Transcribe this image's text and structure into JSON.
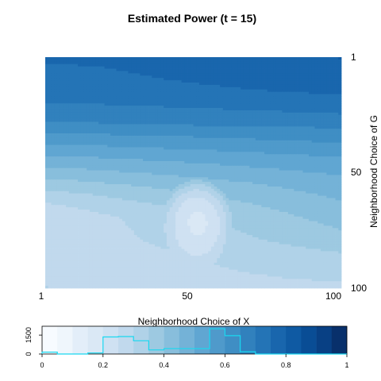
{
  "chart_data": [
    {
      "type": "heatmap",
      "title": "Estimated Power (t = 15)",
      "xlabel": "Neighborhood Choice of X",
      "ylabel": "Neighborhood Choice of G",
      "x_ticks": [
        "1",
        "50",
        "100"
      ],
      "y_ticks": [
        "1",
        "50",
        "100"
      ],
      "x_range": [
        1,
        100
      ],
      "y_range": [
        1,
        100
      ],
      "y_axis_side": "right",
      "y_direction": "top-to-bottom",
      "color_scale": "Blues",
      "value_range": [
        0,
        1
      ],
      "grid": false,
      "row_profile": {
        "rows": [
          1,
          5,
          10,
          15,
          20,
          25,
          30,
          35,
          40,
          45,
          50,
          55,
          60,
          65,
          70,
          75,
          80,
          85,
          90,
          95,
          100
        ],
        "left_edge": [
          0.76,
          0.74,
          0.73,
          0.72,
          0.7,
          0.67,
          0.64,
          0.58,
          0.53,
          0.48,
          0.43,
          0.38,
          0.33,
          0.29,
          0.26,
          0.26,
          0.26,
          0.26,
          0.26,
          0.27,
          0.3
        ],
        "right_edge": [
          0.8,
          0.79,
          0.78,
          0.76,
          0.73,
          0.7,
          0.66,
          0.62,
          0.58,
          0.54,
          0.51,
          0.48,
          0.46,
          0.44,
          0.42,
          0.4,
          0.38,
          0.35,
          0.33,
          0.31,
          0.29
        ]
      },
      "low_power_spot": {
        "x_center": 52,
        "y_center": 72,
        "x_halfwidth": 12,
        "y_halfwidth": 20,
        "value": 0.19
      }
    },
    {
      "type": "bar",
      "title": "",
      "xlabel": "",
      "ylabel": "",
      "x_ticks": [
        "0",
        "0.2",
        "0.4",
        "0.6",
        "0.8",
        "1"
      ],
      "y_ticks": [
        "0",
        "1500"
      ],
      "xlim": [
        0,
        1
      ],
      "ylim": [
        0,
        2200
      ],
      "color_bins": 20,
      "bin_colors": [
        "#F7FBFF",
        "#EFF6FC",
        "#E3EEF9",
        "#DAE8F5",
        "#CFE1F2",
        "#C1D9ED",
        "#B0D2E8",
        "#9DC9E1",
        "#88BEDC",
        "#74B2D7",
        "#60A6D2",
        "#4F9ACB",
        "#3F8EC4",
        "#3181BD",
        "#2474B6",
        "#1966AD",
        "#0F5AA3",
        "#094D95",
        "#084084",
        "#08306B"
      ],
      "histogram": {
        "bins": [
          0.0,
          0.05,
          0.1,
          0.15,
          0.2,
          0.25,
          0.3,
          0.35,
          0.4,
          0.45,
          0.5,
          0.55,
          0.6,
          0.65,
          0.7,
          0.75,
          0.8,
          0.85,
          0.9,
          0.95,
          1.0
        ],
        "counts": [
          150,
          0,
          0,
          80,
          1350,
          1380,
          1050,
          330,
          430,
          430,
          430,
          2000,
          1450,
          180,
          0,
          0,
          0,
          0,
          0,
          0
        ],
        "line_color": "#19d8f0"
      }
    }
  ]
}
